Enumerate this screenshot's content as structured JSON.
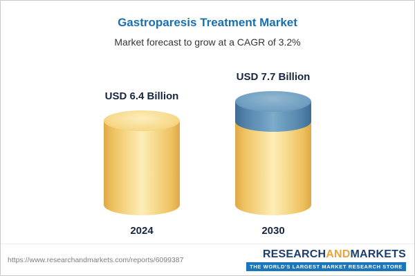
{
  "header": {
    "title": "Gastroparesis Treatment Market",
    "subtitle": "Market forecast to grow at a CAGR of 3.2%"
  },
  "chart_data": {
    "type": "bar",
    "title": "Gastroparesis Treatment Market",
    "subtitle": "Market forecast to grow at a CAGR of 3.2%",
    "categories": [
      "2024",
      "2030"
    ],
    "values": [
      6.4,
      7.7
    ],
    "value_labels": [
      "USD 6.4 Billion",
      "USD 7.7 Billion"
    ],
    "unit": "USD Billion",
    "cagr_percent": 3.2,
    "ylim": [
      0,
      8
    ],
    "grid": false,
    "legend": "none",
    "bar_style": "3d-cylinder",
    "colors": {
      "base_segment": "#f6d47c",
      "growth_segment": "#5d8fb4",
      "title_text": "#1a6fae",
      "label_text": "#17263f"
    },
    "notes": "2030 bar shows base value in gold with incremental growth segment in blue on top"
  },
  "footer": {
    "url": "https://www.researchandmarkets.com/reports/6099387",
    "logo": {
      "research": "RESEARCH",
      "and": "AND",
      "markets": "MARKETS",
      "tagline": "THE WORLD'S LARGEST MARKET RESEARCH STORE"
    }
  }
}
